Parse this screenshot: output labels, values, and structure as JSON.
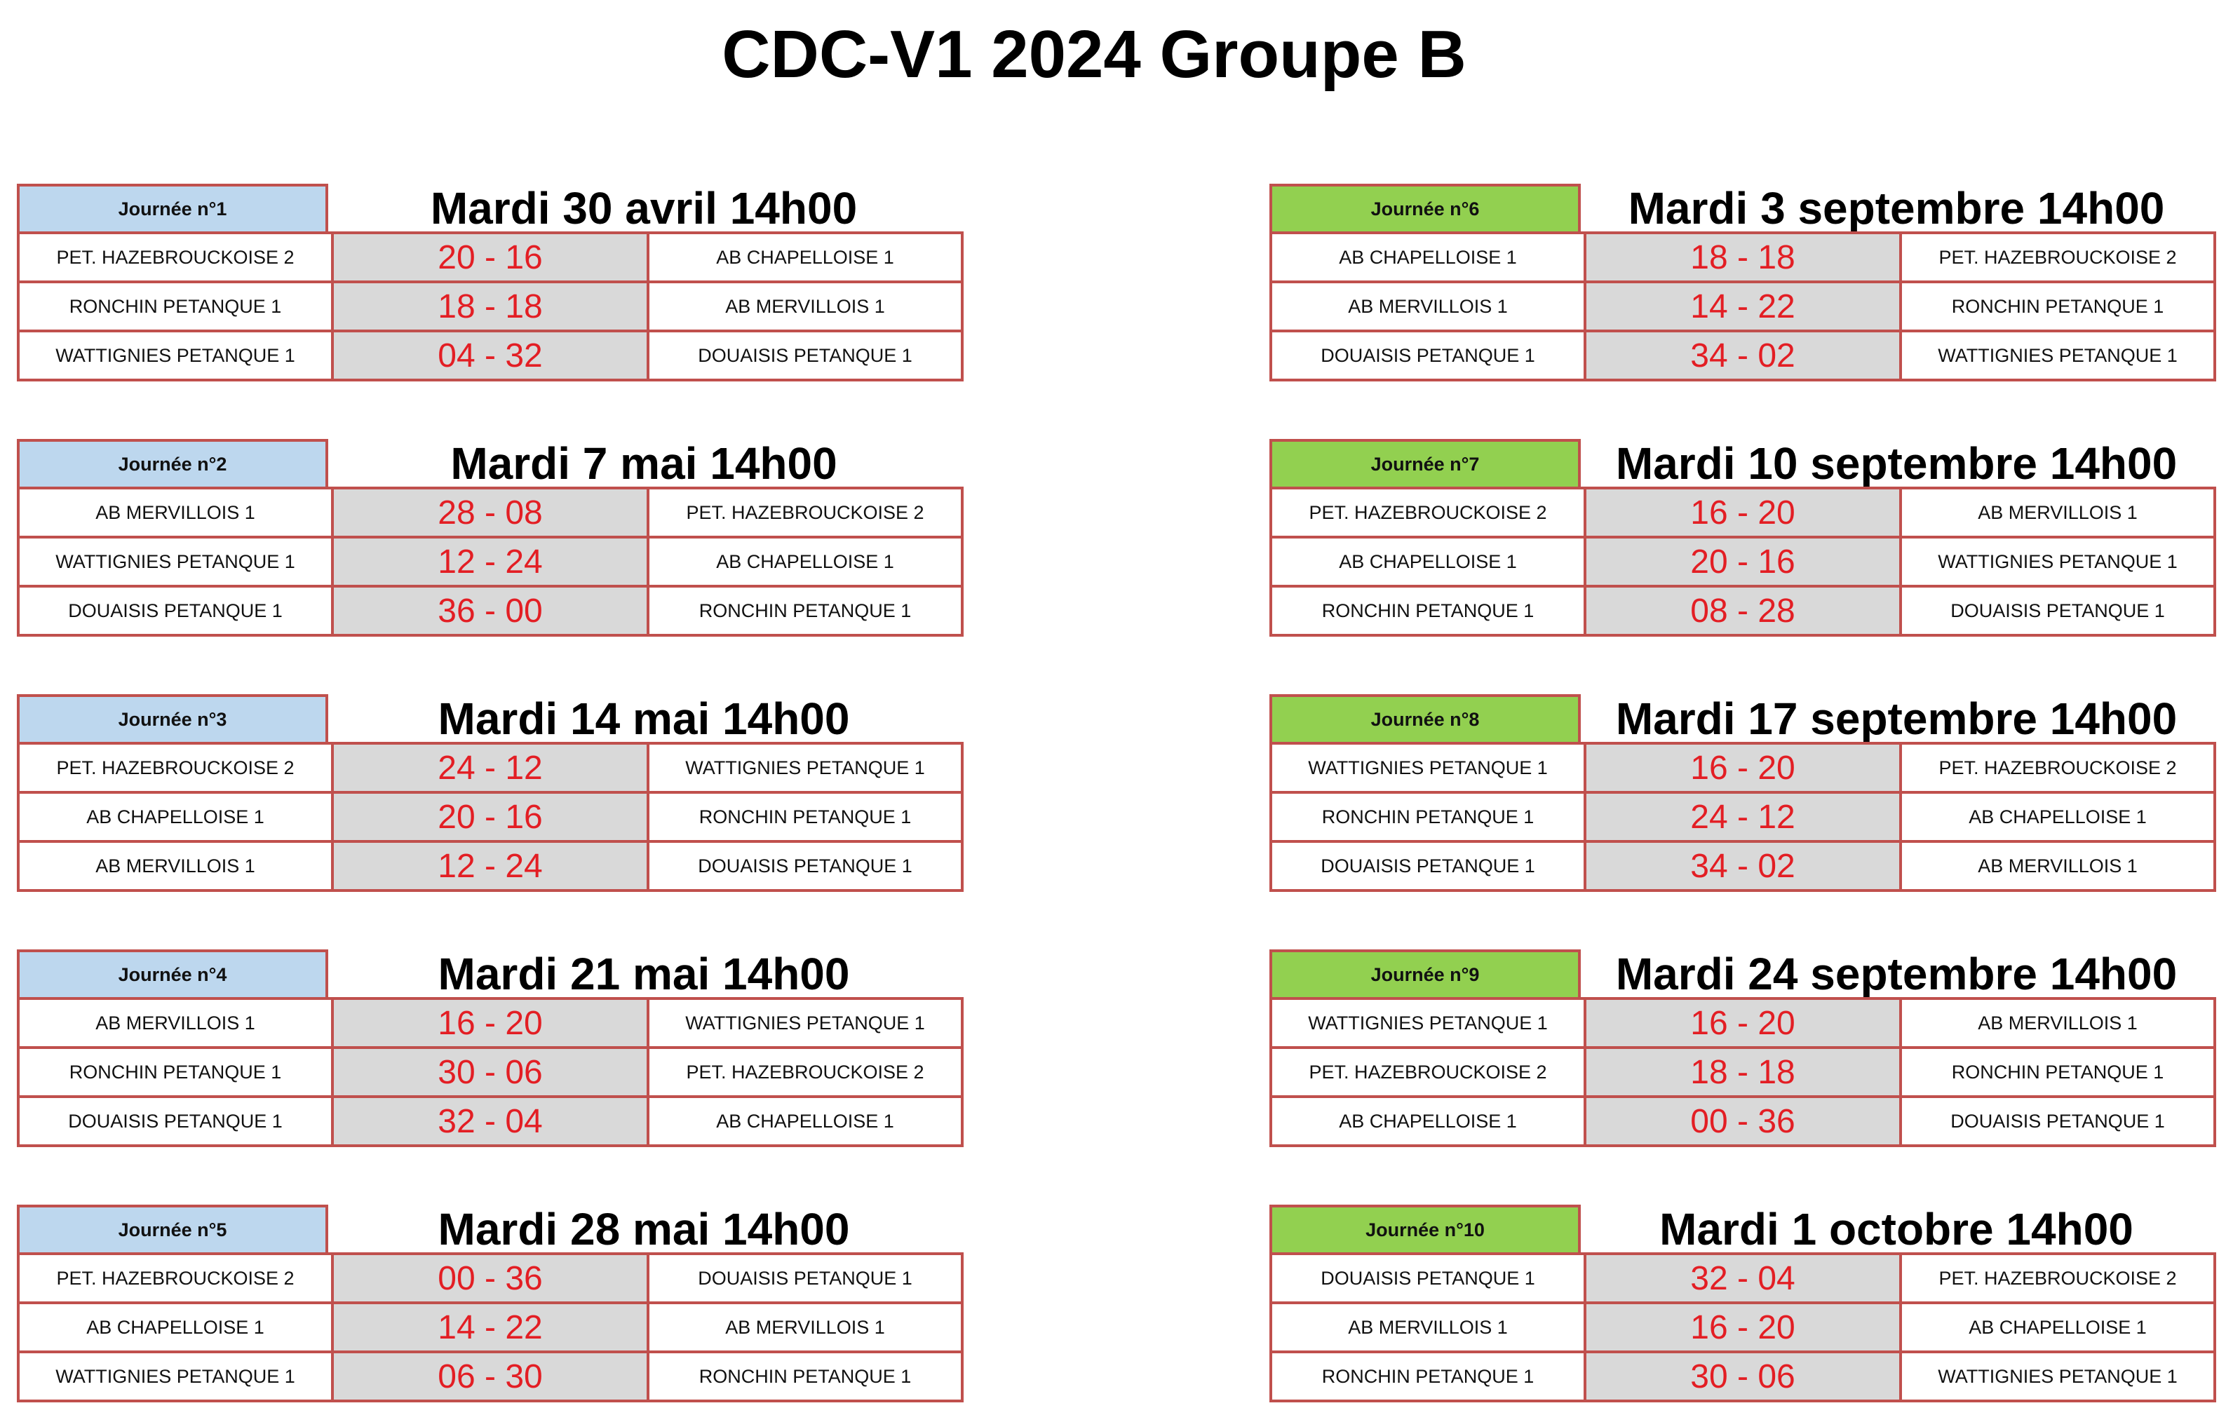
{
  "title": "CDC-V1 2024 Groupe B",
  "columns": [
    {
      "side": "left",
      "rounds": [
        {
          "label": "Journée n°1",
          "date": "Mardi 30 avril 14h00",
          "matches": [
            {
              "home": "PET. HAZEBROUCKOISE 2",
              "score": "20 - 16",
              "away": "AB CHAPELLOISE 1"
            },
            {
              "home": "RONCHIN PETANQUE 1",
              "score": "18 - 18",
              "away": "AB MERVILLOIS 1"
            },
            {
              "home": "WATTIGNIES PETANQUE 1",
              "score": "04 - 32",
              "away": "DOUAISIS PETANQUE 1"
            }
          ]
        },
        {
          "label": "Journée n°2",
          "date": "Mardi 7 mai 14h00",
          "matches": [
            {
              "home": "AB MERVILLOIS 1",
              "score": "28 - 08",
              "away": "PET. HAZEBROUCKOISE 2"
            },
            {
              "home": "WATTIGNIES PETANQUE 1",
              "score": "12 - 24",
              "away": "AB CHAPELLOISE 1"
            },
            {
              "home": "DOUAISIS PETANQUE 1",
              "score": "36 - 00",
              "away": "RONCHIN PETANQUE 1"
            }
          ]
        },
        {
          "label": "Journée n°3",
          "date": "Mardi 14 mai 14h00",
          "matches": [
            {
              "home": "PET. HAZEBROUCKOISE 2",
              "score": "24 - 12",
              "away": "WATTIGNIES PETANQUE 1"
            },
            {
              "home": "AB CHAPELLOISE 1",
              "score": "20 - 16",
              "away": "RONCHIN PETANQUE 1"
            },
            {
              "home": "AB MERVILLOIS 1",
              "score": "12 - 24",
              "away": "DOUAISIS PETANQUE 1"
            }
          ]
        },
        {
          "label": "Journée n°4",
          "date": "Mardi 21 mai 14h00",
          "matches": [
            {
              "home": "AB MERVILLOIS 1",
              "score": "16 - 20",
              "away": "WATTIGNIES PETANQUE 1"
            },
            {
              "home": "RONCHIN PETANQUE 1",
              "score": "30 - 06",
              "away": "PET. HAZEBROUCKOISE 2"
            },
            {
              "home": "DOUAISIS PETANQUE 1",
              "score": "32 - 04",
              "away": "AB CHAPELLOISE 1"
            }
          ]
        },
        {
          "label": "Journée n°5",
          "date": "Mardi 28 mai 14h00",
          "matches": [
            {
              "home": "PET. HAZEBROUCKOISE 2",
              "score": "00 - 36",
              "away": "DOUAISIS PETANQUE 1"
            },
            {
              "home": "AB CHAPELLOISE 1",
              "score": "14 - 22",
              "away": "AB MERVILLOIS 1"
            },
            {
              "home": "WATTIGNIES PETANQUE 1",
              "score": "06 - 30",
              "away": "RONCHIN PETANQUE 1"
            }
          ]
        }
      ]
    },
    {
      "side": "right",
      "rounds": [
        {
          "label": "Journée n°6",
          "date": "Mardi 3 septembre 14h00",
          "matches": [
            {
              "home": "AB CHAPELLOISE 1",
              "score": "18 - 18",
              "away": "PET. HAZEBROUCKOISE 2"
            },
            {
              "home": "AB MERVILLOIS 1",
              "score": "14 - 22",
              "away": "RONCHIN PETANQUE 1"
            },
            {
              "home": "DOUAISIS PETANQUE 1",
              "score": "34 - 02",
              "away": "WATTIGNIES PETANQUE 1"
            }
          ]
        },
        {
          "label": "Journée n°7",
          "date": "Mardi 10 septembre 14h00",
          "matches": [
            {
              "home": "PET. HAZEBROUCKOISE 2",
              "score": "16 - 20",
              "away": "AB MERVILLOIS 1"
            },
            {
              "home": "AB CHAPELLOISE 1",
              "score": "20 - 16",
              "away": "WATTIGNIES PETANQUE 1"
            },
            {
              "home": "RONCHIN PETANQUE 1",
              "score": "08 - 28",
              "away": "DOUAISIS PETANQUE 1"
            }
          ]
        },
        {
          "label": "Journée n°8",
          "date": "Mardi 17 septembre 14h00",
          "matches": [
            {
              "home": "WATTIGNIES PETANQUE 1",
              "score": "16 - 20",
              "away": "PET. HAZEBROUCKOISE 2"
            },
            {
              "home": "RONCHIN PETANQUE 1",
              "score": "24 - 12",
              "away": "AB CHAPELLOISE 1"
            },
            {
              "home": "DOUAISIS PETANQUE 1",
              "score": "34 - 02",
              "away": "AB MERVILLOIS 1"
            }
          ]
        },
        {
          "label": "Journée n°9",
          "date": "Mardi 24 septembre 14h00",
          "matches": [
            {
              "home": "WATTIGNIES PETANQUE 1",
              "score": "16 - 20",
              "away": "AB MERVILLOIS 1"
            },
            {
              "home": "PET. HAZEBROUCKOISE 2",
              "score": "18 - 18",
              "away": "RONCHIN PETANQUE 1"
            },
            {
              "home": "AB CHAPELLOISE 1",
              "score": "00 - 36",
              "away": "DOUAISIS PETANQUE 1"
            }
          ]
        },
        {
          "label": "Journée n°10",
          "date": "Mardi 1 octobre 14h00",
          "matches": [
            {
              "home": "DOUAISIS PETANQUE 1",
              "score": "32 - 04",
              "away": "PET. HAZEBROUCKOISE 2"
            },
            {
              "home": "AB MERVILLOIS 1",
              "score": "16 - 20",
              "away": "AB CHAPELLOISE 1"
            },
            {
              "home": "RONCHIN PETANQUE 1",
              "score": "30 - 06",
              "away": "WATTIGNIES PETANQUE 1"
            }
          ]
        }
      ]
    }
  ]
}
